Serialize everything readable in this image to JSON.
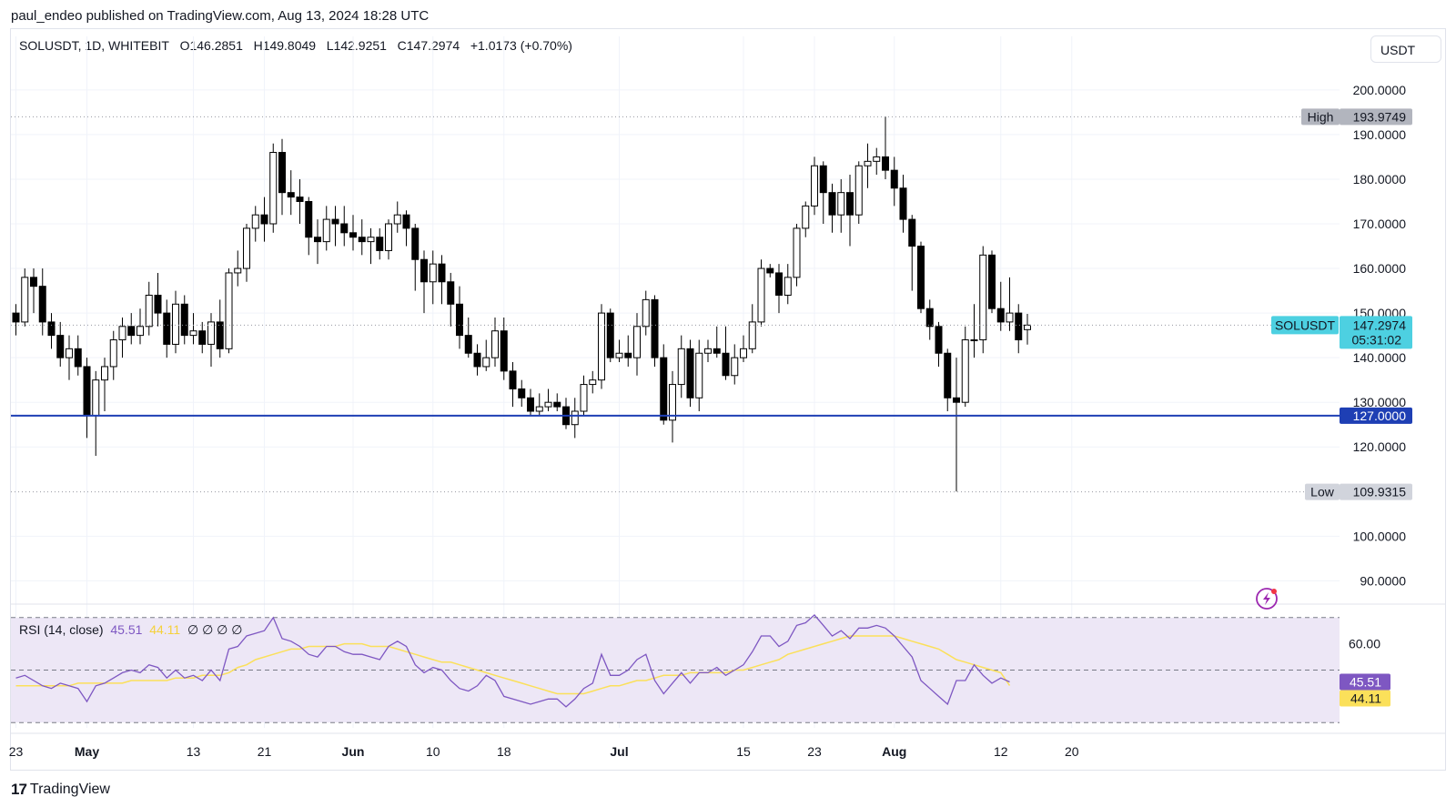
{
  "header": {
    "publish_text": "paul_endeo published on TradingView.com, Aug 13, 2024 18:28 UTC"
  },
  "legend": {
    "symbol": "SOLUSDT, 1D, WHITEBIT",
    "open_label": "O",
    "open": "146.2851",
    "high_label": "H",
    "high": "149.8049",
    "low_label": "L",
    "low": "142.9251",
    "close_label": "C",
    "close": "147.2974",
    "change": "+1.0173 (+0.70%)"
  },
  "currency": "USDT",
  "colors": {
    "up_fill": "#ffffff",
    "down_fill": "#000000",
    "wick": "#000000",
    "support_line": "#1e3fb4",
    "symbol_badge": "#4dd0e1",
    "rsi_line": "#7e57c2",
    "rsi_ma": "#fbe05a",
    "rsi_band": "#ede7f6",
    "grid": "#f0f3fa"
  },
  "chart_data": {
    "type": "candlestick",
    "symbol": "SOLUSDT",
    "interval": "1D",
    "exchange": "WHITEBIT",
    "y_range": [
      86,
      212
    ],
    "y_ticks": [
      "200.0000",
      "190.0000",
      "180.0000",
      "170.0000",
      "160.0000",
      "150.0000",
      "140.0000",
      "130.0000",
      "120.0000",
      "100.0000",
      "90.0000"
    ],
    "x_ticks": [
      "23",
      "May",
      "13",
      "21",
      "Jun",
      "10",
      "18",
      "Jul",
      "15",
      "23",
      "Aug",
      "12",
      "20"
    ],
    "x_tick_index": [
      0,
      8,
      20,
      28,
      38,
      47,
      55,
      68,
      82,
      90,
      99,
      111,
      119
    ],
    "candles": [
      [
        150,
        148,
        152,
        145
      ],
      [
        148,
        158,
        160,
        147
      ],
      [
        158,
        156,
        160,
        150
      ],
      [
        156,
        148,
        160,
        145
      ],
      [
        148,
        145,
        150,
        142
      ],
      [
        145,
        140,
        148,
        138
      ],
      [
        140,
        142,
        145,
        135
      ],
      [
        142,
        138,
        145,
        136
      ],
      [
        138,
        127,
        140,
        122
      ],
      [
        127,
        135,
        137,
        118
      ],
      [
        135,
        138,
        140,
        128
      ],
      [
        138,
        144,
        146,
        135
      ],
      [
        144,
        147,
        149,
        140
      ],
      [
        147,
        145,
        150,
        143
      ],
      [
        145,
        147,
        151,
        143
      ],
      [
        147,
        154,
        157,
        145
      ],
      [
        154,
        150,
        159,
        147
      ],
      [
        150,
        143,
        153,
        140
      ],
      [
        143,
        152,
        155,
        141
      ],
      [
        152,
        145,
        154,
        143
      ],
      [
        145,
        146,
        150,
        143
      ],
      [
        146,
        143,
        148,
        141
      ],
      [
        143,
        148,
        150,
        138
      ],
      [
        148,
        142,
        153,
        140
      ],
      [
        142,
        159,
        160,
        141
      ],
      [
        159,
        160,
        164,
        156
      ],
      [
        160,
        169,
        170,
        157
      ],
      [
        169,
        172,
        174,
        166
      ],
      [
        172,
        170,
        176,
        166
      ],
      [
        170,
        186,
        188,
        168
      ],
      [
        186,
        177,
        189,
        172
      ],
      [
        177,
        176,
        182,
        172
      ],
      [
        176,
        175,
        180,
        170
      ],
      [
        175,
        167,
        176,
        163
      ],
      [
        167,
        166,
        171,
        161
      ],
      [
        166,
        171,
        174,
        164
      ],
      [
        171,
        170,
        174,
        165
      ],
      [
        170,
        168,
        174,
        165
      ],
      [
        168,
        167,
        172,
        164
      ],
      [
        167,
        166,
        171,
        163
      ],
      [
        166,
        167,
        169,
        161
      ],
      [
        167,
        164,
        169,
        162
      ],
      [
        164,
        170,
        171,
        162
      ],
      [
        170,
        172,
        175,
        168
      ],
      [
        172,
        169,
        173,
        165
      ],
      [
        169,
        162,
        170,
        155
      ],
      [
        162,
        157,
        164,
        150
      ],
      [
        157,
        161,
        164,
        152
      ],
      [
        161,
        157,
        163,
        152
      ],
      [
        157,
        152,
        159,
        147
      ],
      [
        152,
        145,
        156,
        142
      ],
      [
        145,
        141,
        149,
        140
      ],
      [
        141,
        138,
        143,
        136
      ],
      [
        138,
        140,
        144,
        137
      ],
      [
        140,
        146,
        149,
        138
      ],
      [
        146,
        137,
        149,
        135
      ],
      [
        137,
        133,
        139,
        129
      ],
      [
        133,
        131,
        135,
        129
      ],
      [
        131,
        128,
        133,
        127
      ],
      [
        128,
        129,
        132,
        127
      ],
      [
        129,
        130,
        133,
        128
      ],
      [
        130,
        129,
        132,
        128
      ],
      [
        129,
        125,
        131,
        124
      ],
      [
        125,
        128,
        131,
        122
      ],
      [
        128,
        134,
        136,
        127
      ],
      [
        134,
        135,
        137,
        132
      ],
      [
        135,
        150,
        152,
        133
      ],
      [
        150,
        140,
        151,
        139
      ],
      [
        140,
        141,
        144,
        139
      ],
      [
        141,
        140,
        145,
        138
      ],
      [
        140,
        147,
        150,
        136
      ],
      [
        147,
        153,
        155,
        145
      ],
      [
        153,
        140,
        154,
        138
      ],
      [
        140,
        126,
        143,
        125
      ],
      [
        126,
        134,
        137,
        121
      ],
      [
        134,
        142,
        145,
        131
      ],
      [
        142,
        131,
        144,
        129
      ],
      [
        131,
        141,
        144,
        128
      ],
      [
        141,
        142,
        144,
        139
      ],
      [
        142,
        141,
        147,
        140
      ],
      [
        141,
        136,
        147,
        135
      ],
      [
        136,
        140,
        143,
        134
      ],
      [
        140,
        142,
        145,
        139
      ],
      [
        142,
        148,
        152,
        141
      ],
      [
        148,
        160,
        162,
        147
      ],
      [
        160,
        159,
        161,
        158
      ],
      [
        159,
        154,
        161,
        150
      ],
      [
        154,
        158,
        161,
        152
      ],
      [
        158,
        169,
        170,
        156
      ],
      [
        169,
        174,
        175,
        167
      ],
      [
        174,
        183,
        185,
        172
      ],
      [
        183,
        177,
        184,
        170
      ],
      [
        177,
        172,
        179,
        168
      ],
      [
        172,
        177,
        180,
        168
      ],
      [
        177,
        172,
        181,
        165
      ],
      [
        172,
        183,
        184,
        170
      ],
      [
        183,
        184,
        188,
        178
      ],
      [
        184,
        185,
        187,
        181
      ],
      [
        185,
        182,
        194,
        180
      ],
      [
        182,
        178,
        185,
        174
      ],
      [
        178,
        171,
        181,
        168
      ],
      [
        171,
        165,
        172,
        155
      ],
      [
        165,
        151,
        166,
        150
      ],
      [
        151,
        147,
        153,
        144
      ],
      [
        147,
        141,
        148,
        138
      ],
      [
        141,
        131,
        142,
        128
      ],
      [
        131,
        130,
        140,
        110
      ],
      [
        130,
        144,
        147,
        129
      ],
      [
        144,
        144,
        152,
        140
      ],
      [
        144,
        163,
        165,
        141
      ],
      [
        163,
        151,
        164,
        150
      ],
      [
        151,
        148,
        157,
        146
      ],
      [
        148,
        150,
        158,
        146
      ],
      [
        150,
        144,
        152,
        141
      ],
      [
        146.2851,
        147.2974,
        149.8049,
        142.9251
      ]
    ],
    "high_marker": {
      "label": "High",
      "value": "193.9749"
    },
    "low_marker": {
      "label": "Low",
      "value": "109.9315"
    },
    "support_level": "127.0000",
    "last_price": {
      "symbol": "SOLUSDT",
      "price": "147.2974",
      "countdown": "05:31:02"
    },
    "rsi": {
      "title": "RSI (14, close)",
      "value": "45.51",
      "ma_value": "44.11",
      "extra": "∅ ∅ ∅ ∅",
      "y_range": [
        28,
        72
      ],
      "levels": [
        70,
        50,
        30
      ],
      "ticks": [
        "60.00"
      ],
      "values": [
        47,
        48,
        46,
        44,
        43,
        45,
        44,
        43,
        38,
        44,
        45,
        47,
        49,
        50,
        49,
        52,
        51,
        47,
        50,
        47,
        48,
        46,
        50,
        46,
        58,
        59,
        63,
        64,
        65,
        70,
        62,
        61,
        59,
        56,
        55,
        59,
        59,
        57,
        56,
        56,
        55,
        54,
        59,
        61,
        59,
        52,
        49,
        51,
        50,
        46,
        43,
        42,
        44,
        48,
        46,
        40,
        39,
        38,
        37,
        38,
        39,
        39,
        36,
        39,
        43,
        45,
        56,
        48,
        48,
        50,
        54,
        56,
        46,
        41,
        45,
        49,
        45,
        49,
        49,
        51,
        48,
        50,
        52,
        57,
        63,
        63,
        59,
        61,
        67,
        68,
        71,
        67,
        63,
        65,
        62,
        66,
        66,
        67,
        66,
        63,
        59,
        55,
        46,
        43,
        40,
        37,
        46,
        46,
        52,
        48,
        45,
        47,
        45.51
      ],
      "ma_values": [
        44,
        44,
        44,
        44,
        44,
        44,
        44,
        45,
        45,
        45,
        45,
        45,
        45,
        46,
        46,
        46,
        46,
        46,
        47,
        47,
        47,
        48,
        48,
        48,
        49,
        51,
        52,
        54,
        55,
        56,
        57,
        58,
        58,
        59,
        59,
        59,
        59,
        60,
        60,
        60,
        59,
        59,
        59,
        58,
        57,
        56,
        55,
        54,
        53,
        53,
        52,
        51,
        50,
        49,
        48,
        47,
        46,
        45,
        44,
        43,
        42,
        41,
        41,
        41,
        41,
        42,
        43,
        44,
        44,
        45,
        46,
        46,
        47,
        48,
        48,
        48,
        49,
        49,
        49,
        49,
        49,
        50,
        50,
        51,
        52,
        53,
        54,
        56,
        57,
        58,
        59,
        60,
        61,
        62,
        63,
        63,
        63,
        63,
        63,
        63,
        62,
        61,
        60,
        59,
        58,
        56,
        54,
        53,
        52,
        51,
        50,
        49,
        44.11
      ]
    }
  }
}
